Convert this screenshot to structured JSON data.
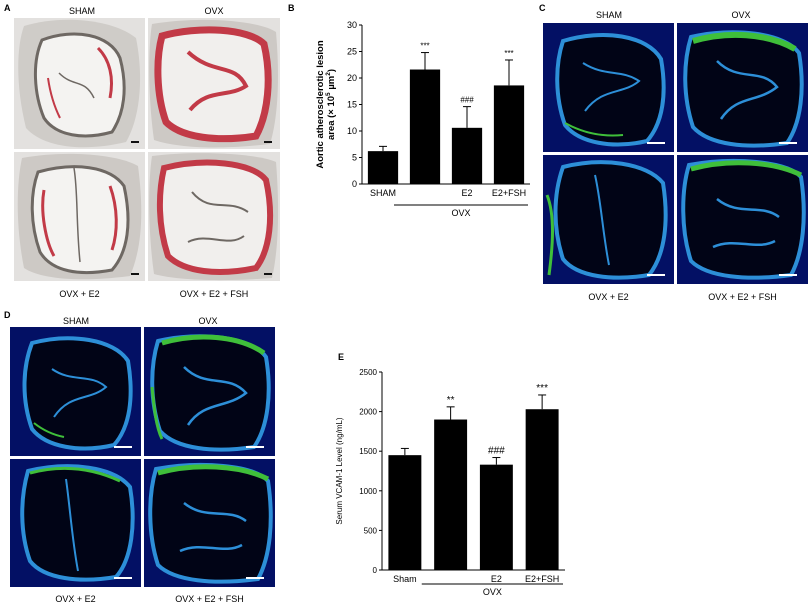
{
  "panels": {
    "A": {
      "label": "A",
      "top_left": "SHAM",
      "top_right": "OVX",
      "bottom_left": "OVX + E2",
      "bottom_right": "OVX + E2 + FSH"
    },
    "C": {
      "label": "C",
      "top_left": "SHAM",
      "top_right": "OVX",
      "bottom_left": "OVX + E2",
      "bottom_right": "OVX + E2 + FSH"
    },
    "D": {
      "label": "D",
      "top_left": "SHAM",
      "top_right": "OVX",
      "bottom_left": "OVX + E2",
      "bottom_right": "OVX + E2 + FSH"
    },
    "B": {
      "label": "B"
    },
    "E": {
      "label": "E"
    }
  },
  "colors": {
    "stain_red": "#c23a47",
    "tissue_gray": "#8a8580",
    "dapi_blue": "#0a1d8a",
    "elastin_cyan": "#2d8fd8",
    "vcam_green": "#3fbf3a",
    "bar": "#000000"
  },
  "chart_data": [
    {
      "type": "bar",
      "panel": "B",
      "categories": [
        "SHAM",
        "",
        "E2",
        "E2+FSH"
      ],
      "values": [
        6.2,
        21.6,
        10.6,
        18.6
      ],
      "errors": [
        0.9,
        3.2,
        4.0,
        4.8
      ],
      "significance": [
        "",
        "***",
        "###",
        "***"
      ],
      "ylabel_line1": "Aortic atherosclerotic lesion",
      "ylabel_line2": "area (× 10",
      "ylabel_sup": "5",
      "ylabel_unit": " µm",
      "ylabel_unit_sup": "2",
      "ylabel_close": ")",
      "group_label": "OVX",
      "ylim": [
        0,
        30
      ],
      "yticks": [
        "0",
        "5",
        "10",
        "15",
        "20",
        "25",
        "30"
      ]
    },
    {
      "type": "bar",
      "panel": "E",
      "categories": [
        "Sham",
        "",
        "E2",
        "E2+FSH"
      ],
      "values": [
        1450,
        1900,
        1330,
        2030
      ],
      "errors": [
        85,
        160,
        90,
        180
      ],
      "significance": [
        "",
        "**",
        "###",
        "***"
      ],
      "ylabel": "Serum VCAM-1 Level (ng/mL)",
      "group_label": "OVX",
      "ylim": [
        0,
        2500
      ],
      "yticks": [
        "0",
        "500",
        "1000",
        "1500",
        "2000",
        "2500"
      ]
    }
  ]
}
